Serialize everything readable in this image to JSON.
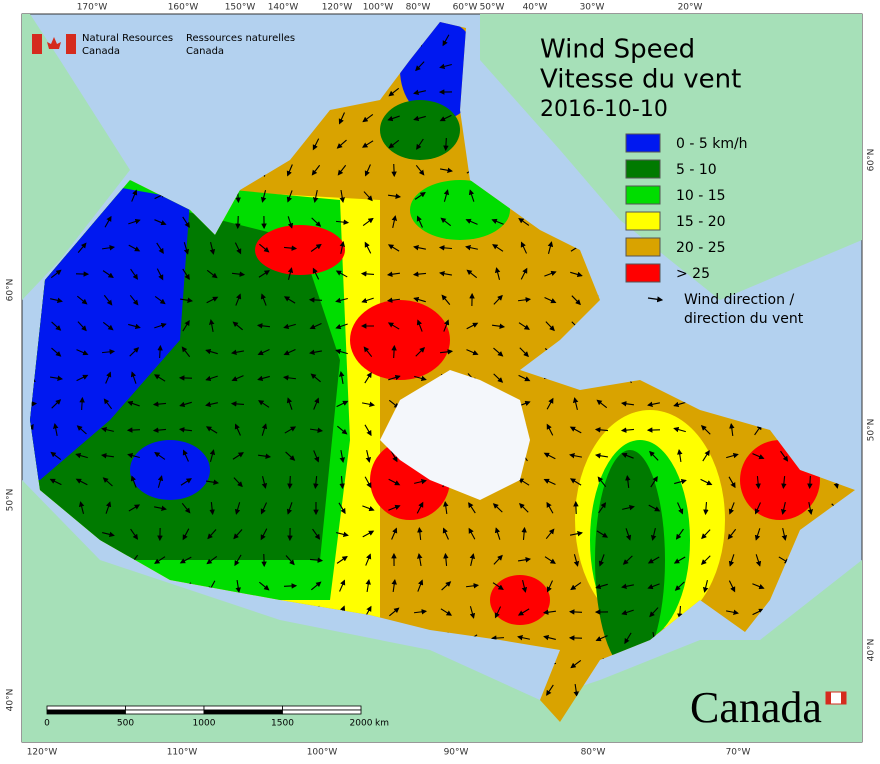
{
  "header": {
    "agency_en": [
      "Natural Resources",
      "Canada"
    ],
    "agency_fr": [
      "Ressources naturelles",
      "Canada"
    ]
  },
  "title": {
    "en": "Wind Speed",
    "fr": "Vitesse du vent",
    "date": "2016-10-10"
  },
  "legend": {
    "items": [
      {
        "label": "0 - 5 km/h",
        "color": "#0018f0"
      },
      {
        "label": "5 - 10",
        "color": "#007a00"
      },
      {
        "label": "10 - 15",
        "color": "#00dd00"
      },
      {
        "label": "15 - 20",
        "color": "#ffff00"
      },
      {
        "label": "20 - 25",
        "color": "#d9a300"
      },
      {
        "label": "> 25",
        "color": "#ff0000"
      }
    ],
    "arrow_label": [
      "Wind direction /",
      "direction du vent"
    ]
  },
  "graticule": {
    "top": [
      "170°W",
      "160°W",
      "150°W",
      "140°W",
      "120°W",
      "100°W",
      "80°W",
      "60°W",
      "50°W",
      "40°W",
      "30°W",
      "20°W"
    ],
    "bottom": [
      "120°W",
      "110°W",
      "100°W",
      "90°W",
      "80°W",
      "70°W"
    ],
    "left": [
      "60°N",
      "50°N",
      "40°N"
    ],
    "right": [
      "60°N",
      "50°N",
      "40°N"
    ]
  },
  "scale": {
    "labels": [
      "0",
      "500",
      "1000",
      "1500",
      "2000"
    ],
    "unit": "km"
  },
  "wordmark": "Canada"
}
